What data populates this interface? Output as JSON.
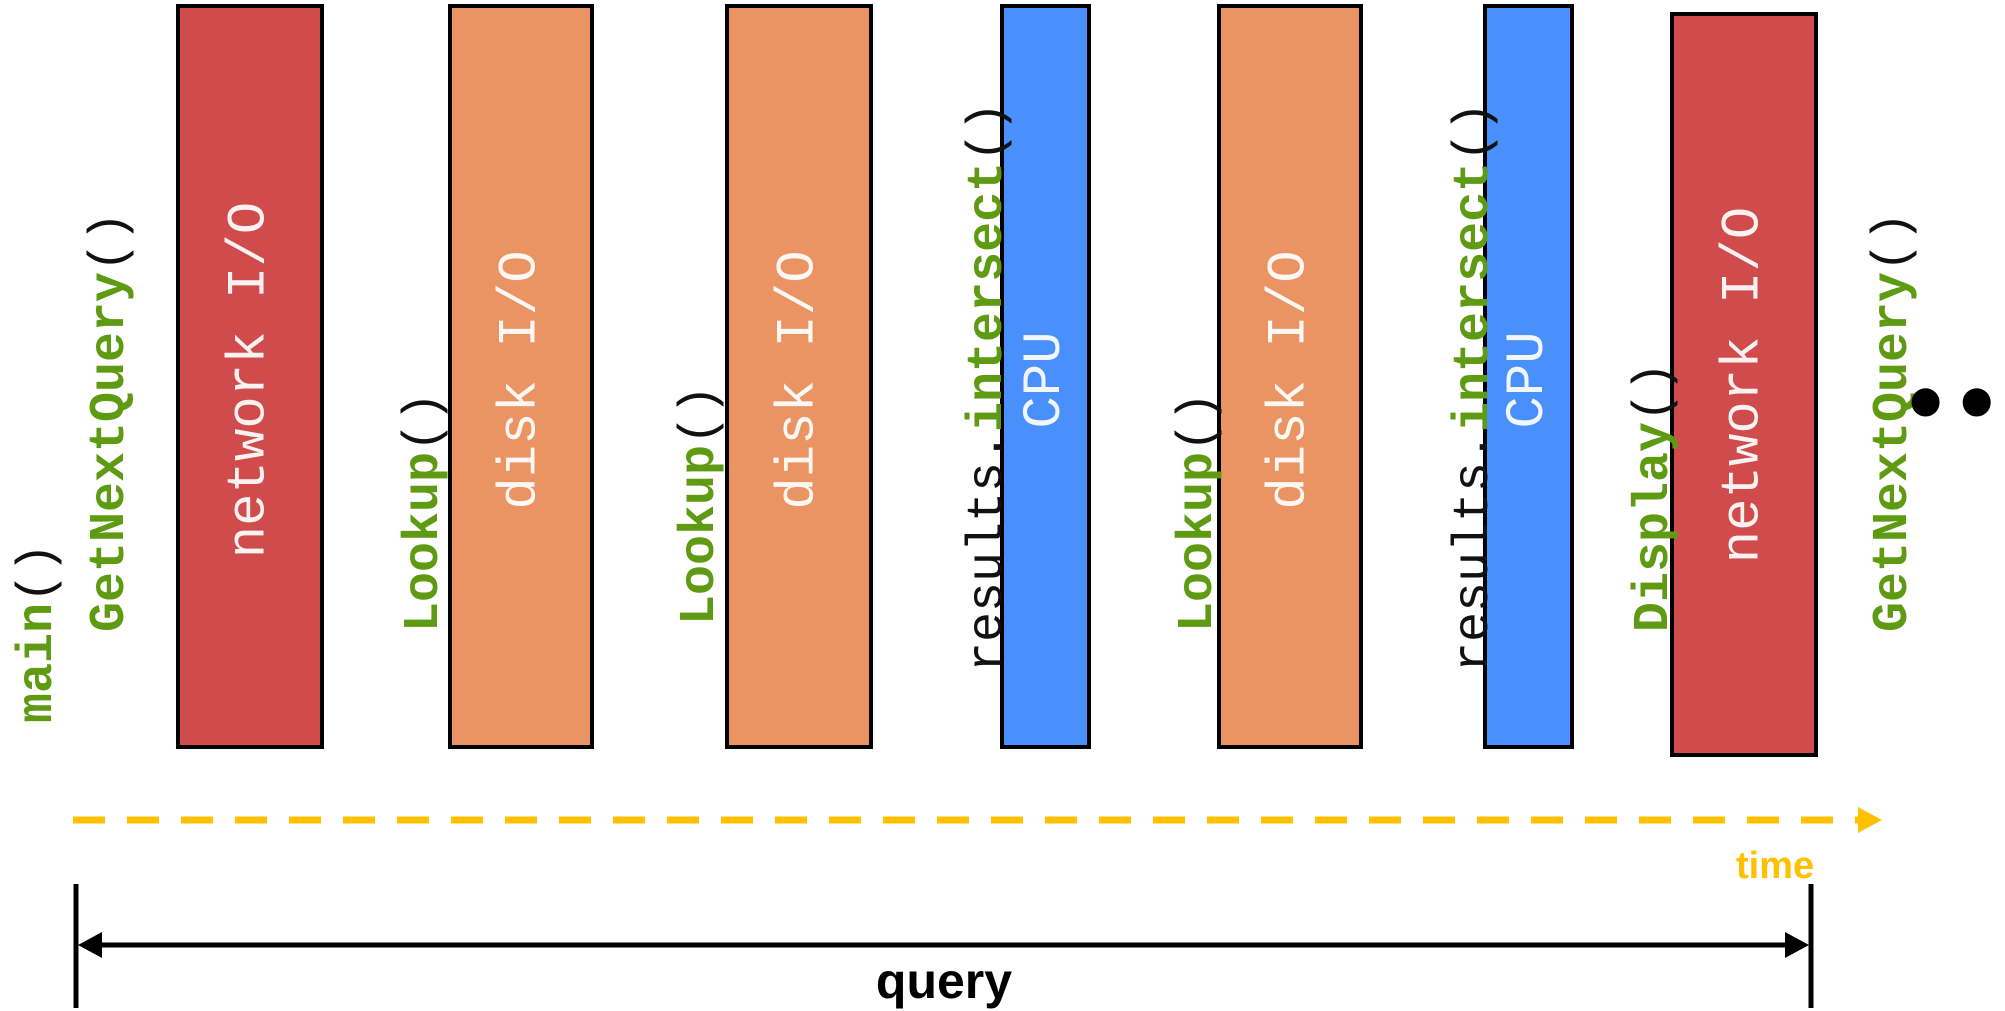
{
  "colors": {
    "network": "#d04b4b",
    "disk": "#e99462",
    "cpu": "#4a90fc",
    "function_name": "#5f9a13",
    "time_axis": "#ffc000",
    "text": "#000000"
  },
  "blocks": [
    {
      "id": "block-network-1",
      "kind": "network",
      "label": "network I/O"
    },
    {
      "id": "block-disk-1",
      "kind": "disk",
      "label": "disk I/O"
    },
    {
      "id": "block-disk-2",
      "kind": "disk",
      "label": "disk I/O"
    },
    {
      "id": "block-cpu-1",
      "kind": "cpu",
      "label": "CPU"
    },
    {
      "id": "block-disk-3",
      "kind": "disk",
      "label": "disk I/O"
    },
    {
      "id": "block-cpu-2",
      "kind": "cpu",
      "label": "CPU"
    },
    {
      "id": "block-network-2",
      "kind": "network",
      "label": "network I/O"
    }
  ],
  "calls": [
    {
      "id": "call-main",
      "prefix": "",
      "name": "main",
      "suffix": "()"
    },
    {
      "id": "call-getnextquery-1",
      "prefix": "",
      "name": "GetNextQuery",
      "suffix": "()"
    },
    {
      "id": "call-lookup-1",
      "prefix": "",
      "name": "Lookup",
      "suffix": "()"
    },
    {
      "id": "call-lookup-2",
      "prefix": "",
      "name": "Lookup",
      "suffix": "()"
    },
    {
      "id": "call-intersect-1",
      "prefix": "results.",
      "name": "intersect",
      "suffix": "()"
    },
    {
      "id": "call-lookup-3",
      "prefix": "",
      "name": "Lookup",
      "suffix": "()"
    },
    {
      "id": "call-intersect-2",
      "prefix": "results.",
      "name": "intersect",
      "suffix": "()"
    },
    {
      "id": "call-display",
      "prefix": "",
      "name": "Display",
      "suffix": "()"
    },
    {
      "id": "call-getnextquery-2",
      "prefix": "",
      "name": "GetNextQuery",
      "suffix": "()"
    }
  ],
  "time_label": "time",
  "query_label": "query",
  "continuation": "•••"
}
